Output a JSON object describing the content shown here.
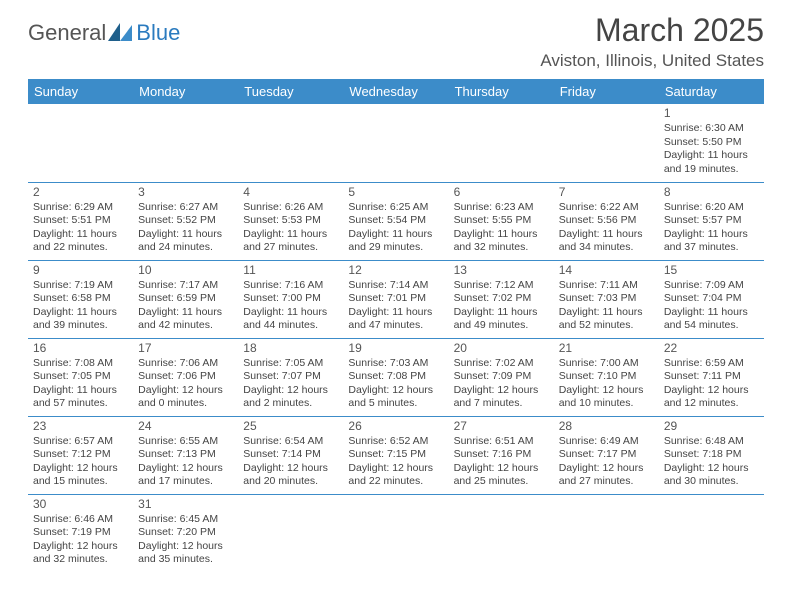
{
  "logo": {
    "part1": "General",
    "part2": "Blue"
  },
  "title": "March 2025",
  "location": "Aviston, Illinois, United States",
  "headers": [
    "Sunday",
    "Monday",
    "Tuesday",
    "Wednesday",
    "Thursday",
    "Friday",
    "Saturday"
  ],
  "colors": {
    "header_bg": "#3c8cc9",
    "header_text": "#ffffff",
    "border": "#3c8cc9",
    "logo_gray": "#555555",
    "logo_blue": "#2b7bbf",
    "text": "#444444",
    "background": "#ffffff"
  },
  "days": [
    {
      "n": "1",
      "sr": "Sunrise: 6:30 AM",
      "ss": "Sunset: 5:50 PM",
      "dl1": "Daylight: 11 hours",
      "dl2": "and 19 minutes."
    },
    {
      "n": "2",
      "sr": "Sunrise: 6:29 AM",
      "ss": "Sunset: 5:51 PM",
      "dl1": "Daylight: 11 hours",
      "dl2": "and 22 minutes."
    },
    {
      "n": "3",
      "sr": "Sunrise: 6:27 AM",
      "ss": "Sunset: 5:52 PM",
      "dl1": "Daylight: 11 hours",
      "dl2": "and 24 minutes."
    },
    {
      "n": "4",
      "sr": "Sunrise: 6:26 AM",
      "ss": "Sunset: 5:53 PM",
      "dl1": "Daylight: 11 hours",
      "dl2": "and 27 minutes."
    },
    {
      "n": "5",
      "sr": "Sunrise: 6:25 AM",
      "ss": "Sunset: 5:54 PM",
      "dl1": "Daylight: 11 hours",
      "dl2": "and 29 minutes."
    },
    {
      "n": "6",
      "sr": "Sunrise: 6:23 AM",
      "ss": "Sunset: 5:55 PM",
      "dl1": "Daylight: 11 hours",
      "dl2": "and 32 minutes."
    },
    {
      "n": "7",
      "sr": "Sunrise: 6:22 AM",
      "ss": "Sunset: 5:56 PM",
      "dl1": "Daylight: 11 hours",
      "dl2": "and 34 minutes."
    },
    {
      "n": "8",
      "sr": "Sunrise: 6:20 AM",
      "ss": "Sunset: 5:57 PM",
      "dl1": "Daylight: 11 hours",
      "dl2": "and 37 minutes."
    },
    {
      "n": "9",
      "sr": "Sunrise: 7:19 AM",
      "ss": "Sunset: 6:58 PM",
      "dl1": "Daylight: 11 hours",
      "dl2": "and 39 minutes."
    },
    {
      "n": "10",
      "sr": "Sunrise: 7:17 AM",
      "ss": "Sunset: 6:59 PM",
      "dl1": "Daylight: 11 hours",
      "dl2": "and 42 minutes."
    },
    {
      "n": "11",
      "sr": "Sunrise: 7:16 AM",
      "ss": "Sunset: 7:00 PM",
      "dl1": "Daylight: 11 hours",
      "dl2": "and 44 minutes."
    },
    {
      "n": "12",
      "sr": "Sunrise: 7:14 AM",
      "ss": "Sunset: 7:01 PM",
      "dl1": "Daylight: 11 hours",
      "dl2": "and 47 minutes."
    },
    {
      "n": "13",
      "sr": "Sunrise: 7:12 AM",
      "ss": "Sunset: 7:02 PM",
      "dl1": "Daylight: 11 hours",
      "dl2": "and 49 minutes."
    },
    {
      "n": "14",
      "sr": "Sunrise: 7:11 AM",
      "ss": "Sunset: 7:03 PM",
      "dl1": "Daylight: 11 hours",
      "dl2": "and 52 minutes."
    },
    {
      "n": "15",
      "sr": "Sunrise: 7:09 AM",
      "ss": "Sunset: 7:04 PM",
      "dl1": "Daylight: 11 hours",
      "dl2": "and 54 minutes."
    },
    {
      "n": "16",
      "sr": "Sunrise: 7:08 AM",
      "ss": "Sunset: 7:05 PM",
      "dl1": "Daylight: 11 hours",
      "dl2": "and 57 minutes."
    },
    {
      "n": "17",
      "sr": "Sunrise: 7:06 AM",
      "ss": "Sunset: 7:06 PM",
      "dl1": "Daylight: 12 hours",
      "dl2": "and 0 minutes."
    },
    {
      "n": "18",
      "sr": "Sunrise: 7:05 AM",
      "ss": "Sunset: 7:07 PM",
      "dl1": "Daylight: 12 hours",
      "dl2": "and 2 minutes."
    },
    {
      "n": "19",
      "sr": "Sunrise: 7:03 AM",
      "ss": "Sunset: 7:08 PM",
      "dl1": "Daylight: 12 hours",
      "dl2": "and 5 minutes."
    },
    {
      "n": "20",
      "sr": "Sunrise: 7:02 AM",
      "ss": "Sunset: 7:09 PM",
      "dl1": "Daylight: 12 hours",
      "dl2": "and 7 minutes."
    },
    {
      "n": "21",
      "sr": "Sunrise: 7:00 AM",
      "ss": "Sunset: 7:10 PM",
      "dl1": "Daylight: 12 hours",
      "dl2": "and 10 minutes."
    },
    {
      "n": "22",
      "sr": "Sunrise: 6:59 AM",
      "ss": "Sunset: 7:11 PM",
      "dl1": "Daylight: 12 hours",
      "dl2": "and 12 minutes."
    },
    {
      "n": "23",
      "sr": "Sunrise: 6:57 AM",
      "ss": "Sunset: 7:12 PM",
      "dl1": "Daylight: 12 hours",
      "dl2": "and 15 minutes."
    },
    {
      "n": "24",
      "sr": "Sunrise: 6:55 AM",
      "ss": "Sunset: 7:13 PM",
      "dl1": "Daylight: 12 hours",
      "dl2": "and 17 minutes."
    },
    {
      "n": "25",
      "sr": "Sunrise: 6:54 AM",
      "ss": "Sunset: 7:14 PM",
      "dl1": "Daylight: 12 hours",
      "dl2": "and 20 minutes."
    },
    {
      "n": "26",
      "sr": "Sunrise: 6:52 AM",
      "ss": "Sunset: 7:15 PM",
      "dl1": "Daylight: 12 hours",
      "dl2": "and 22 minutes."
    },
    {
      "n": "27",
      "sr": "Sunrise: 6:51 AM",
      "ss": "Sunset: 7:16 PM",
      "dl1": "Daylight: 12 hours",
      "dl2": "and 25 minutes."
    },
    {
      "n": "28",
      "sr": "Sunrise: 6:49 AM",
      "ss": "Sunset: 7:17 PM",
      "dl1": "Daylight: 12 hours",
      "dl2": "and 27 minutes."
    },
    {
      "n": "29",
      "sr": "Sunrise: 6:48 AM",
      "ss": "Sunset: 7:18 PM",
      "dl1": "Daylight: 12 hours",
      "dl2": "and 30 minutes."
    },
    {
      "n": "30",
      "sr": "Sunrise: 6:46 AM",
      "ss": "Sunset: 7:19 PM",
      "dl1": "Daylight: 12 hours",
      "dl2": "and 32 minutes."
    },
    {
      "n": "31",
      "sr": "Sunrise: 6:45 AM",
      "ss": "Sunset: 7:20 PM",
      "dl1": "Daylight: 12 hours",
      "dl2": "and 35 minutes."
    }
  ],
  "layout": {
    "first_day_column": 6,
    "total_days": 31,
    "columns": 7
  }
}
